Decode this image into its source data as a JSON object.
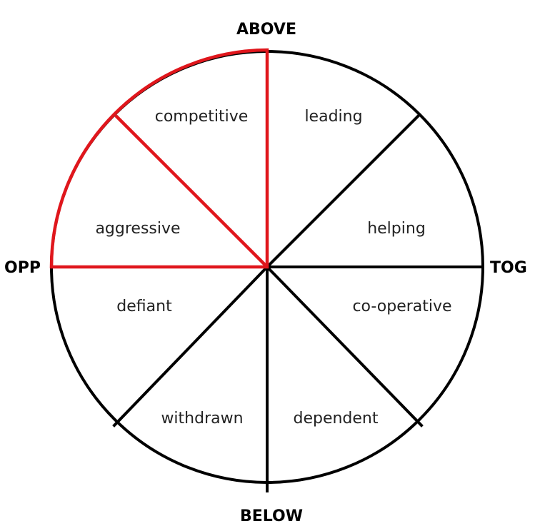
{
  "axes": {
    "top": "ABOVE",
    "bottom": "BELOW",
    "left": "OPP",
    "right": "TOG"
  },
  "segments": [
    "leading",
    "helping",
    "co-operative",
    "dependent",
    "withdrawn",
    "defiant",
    "aggressive",
    "competitive"
  ],
  "highlight": {
    "color": "#e0161c",
    "segments": [
      "competitive",
      "aggressive"
    ]
  }
}
